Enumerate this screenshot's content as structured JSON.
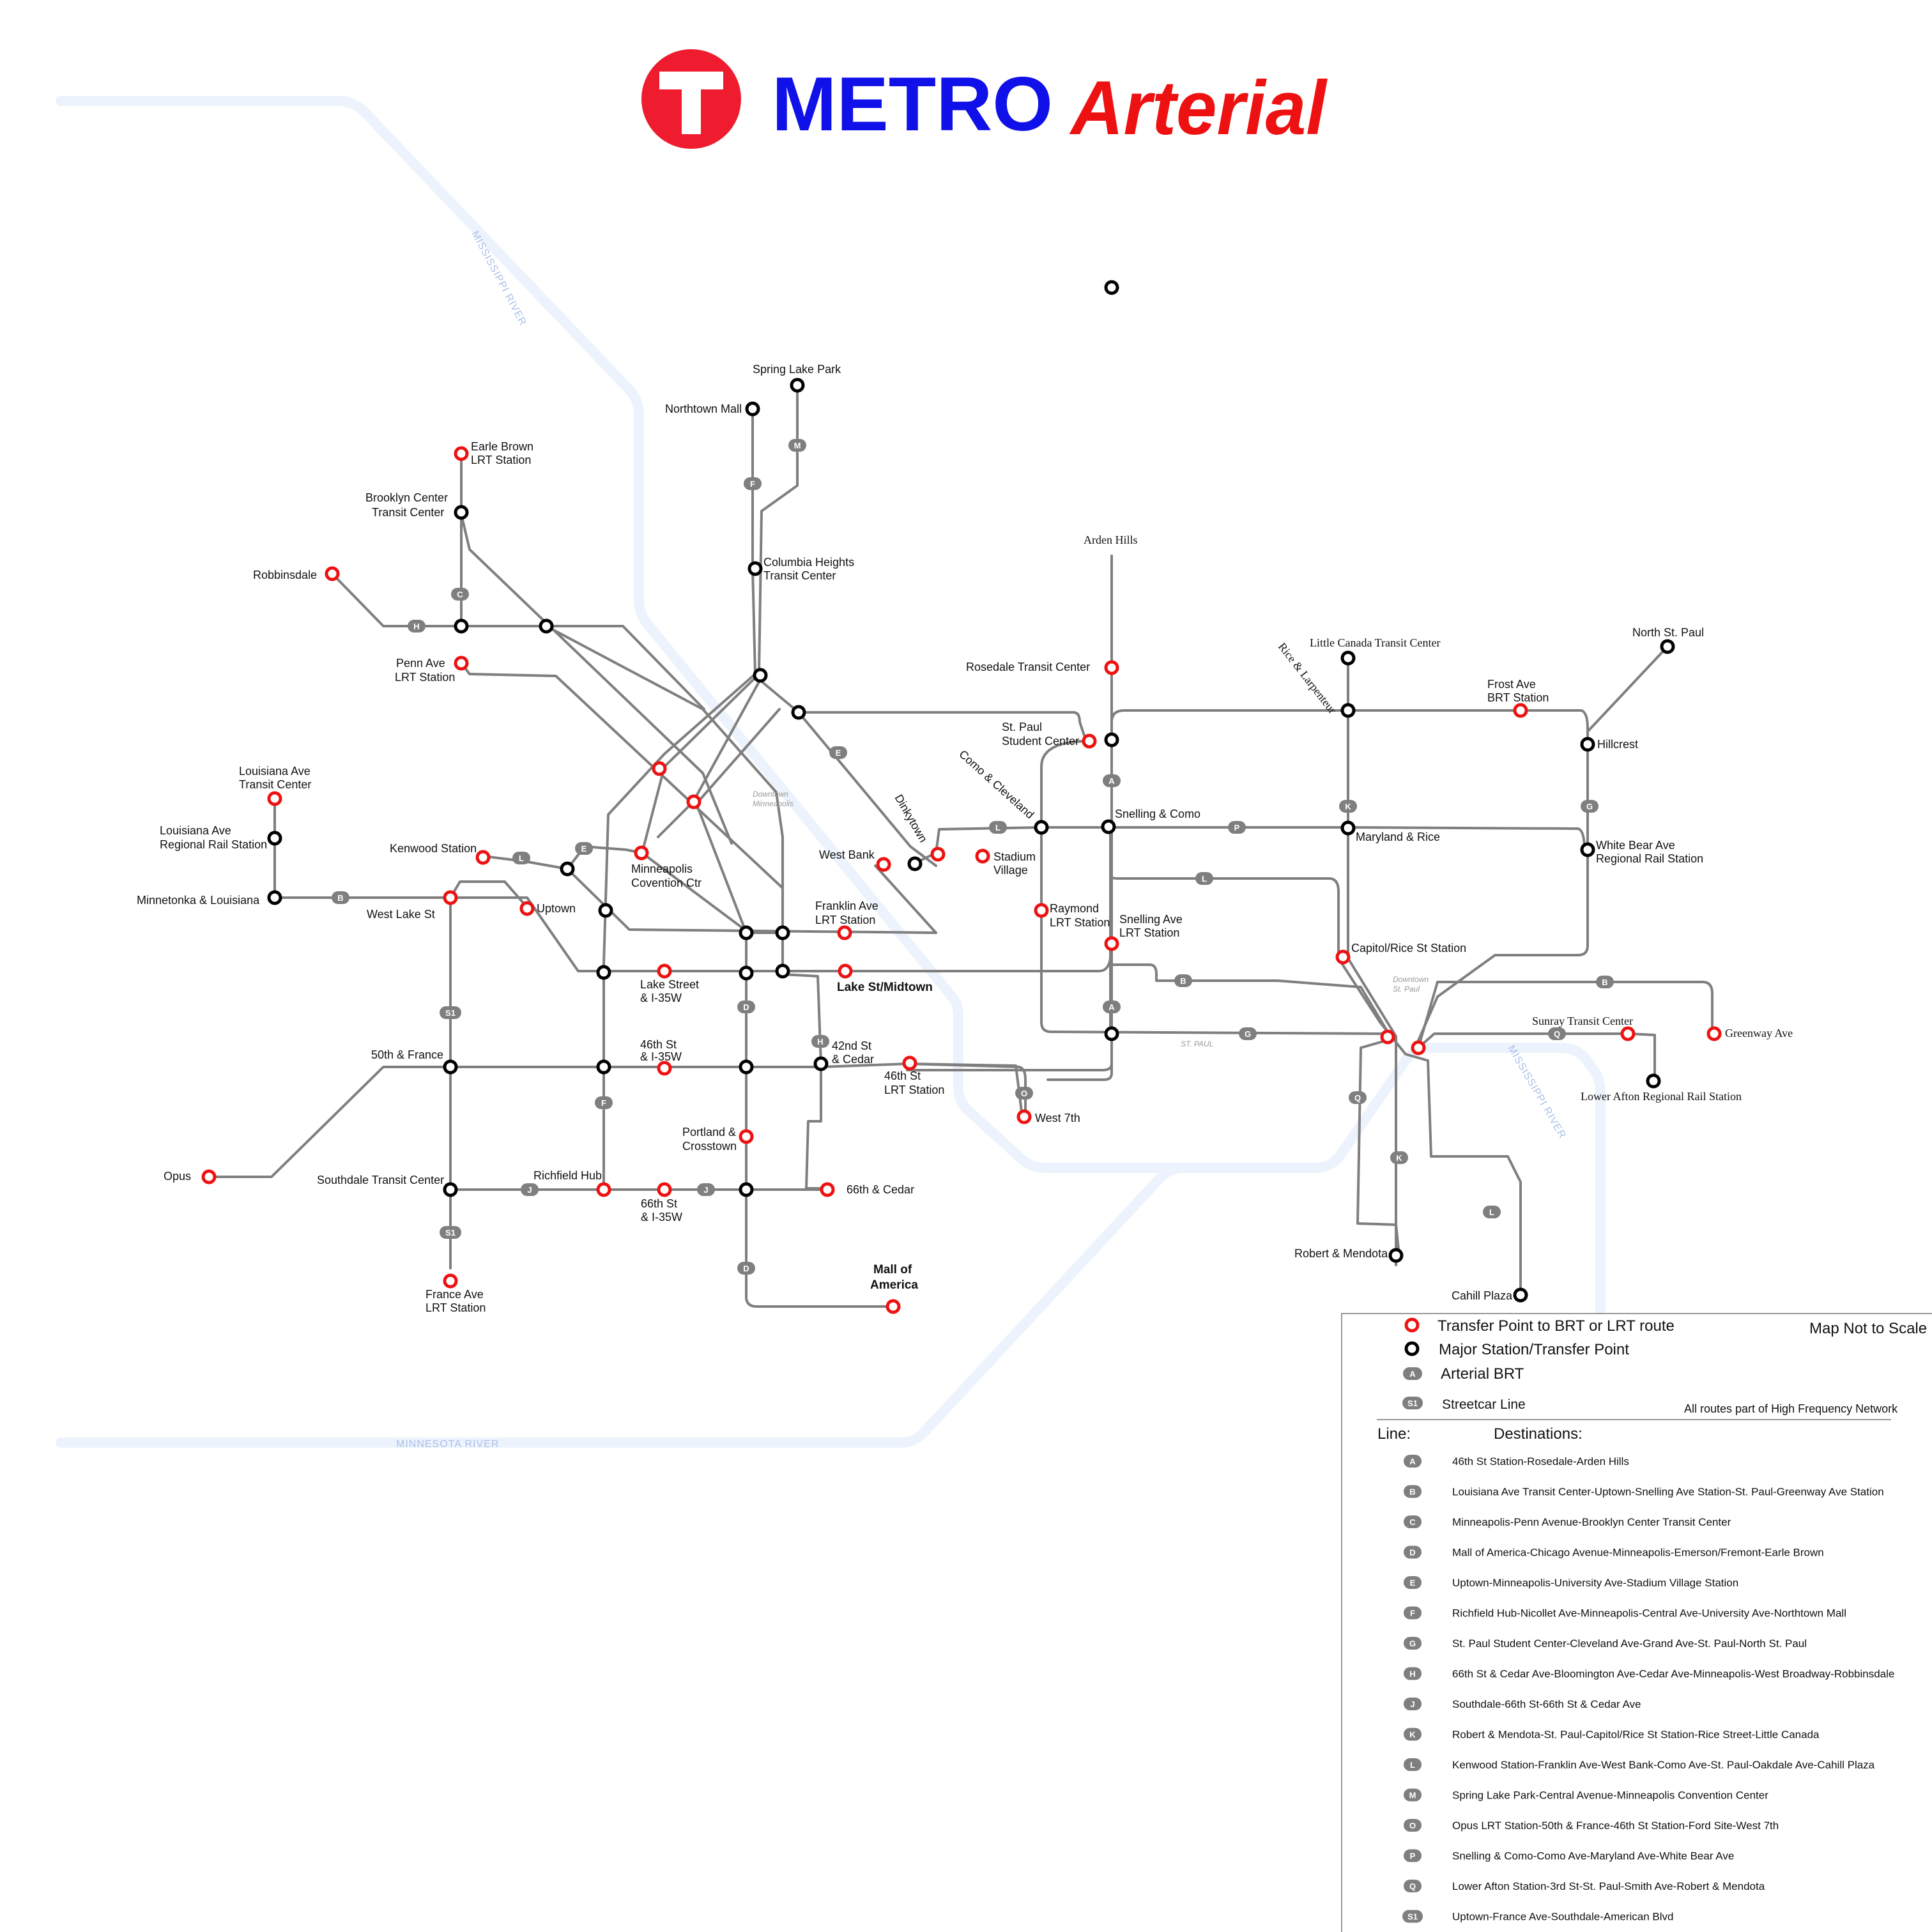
{
  "title": {
    "logo_letter": "T",
    "metro": "METRO",
    "arterial": "Arterial"
  },
  "colors": {
    "brand_red": "#ee1c2e",
    "title_blue": "#1010e8",
    "title_red": "#ee1111",
    "route_gray": "#7f7f7f",
    "river_blue": "#edf3fc",
    "transfer_stop": "#ee1111",
    "major_stop": "#000000"
  },
  "rivers": {
    "mississippi_north": "MISSISSIPPI RIVER",
    "mississippi_south": "MISSISSIPPI RIVER",
    "minnesota": "MINNESOTA RIVER"
  },
  "areas": {
    "downtown_mpls": [
      "Downtown",
      "Minneapolis"
    ],
    "downtown_stpaul": [
      "Downtown",
      "St. Paul"
    ],
    "st_paul": "ST. PAUL"
  },
  "stations": {
    "spring_lake_park": "Spring Lake Park",
    "northtown_mall": "Northtown Mall",
    "earle_brown": [
      "Earle Brown",
      "LRT Station"
    ],
    "brooklyn_center": [
      "Brooklyn Center",
      "Transit Center"
    ],
    "robbinsdale": "Robbinsdale",
    "columbia_heights": [
      "Columbia Heights",
      "Transit Center"
    ],
    "penn_ave": [
      "Penn Ave",
      "LRT Station"
    ],
    "arden_hills": "Arden Hills",
    "rosedale": "Rosedale Transit Center",
    "little_canada": "Little Canada Transit Center",
    "rice_larpenteur": "Rice & Larpenteur",
    "north_st_paul": "North St. Paul",
    "frost_ave": [
      "Frost Ave",
      "BRT Station"
    ],
    "hillcrest": "Hillcrest",
    "st_paul_student": [
      "St. Paul",
      "Student Center"
    ],
    "como_cleveland": "Como & Cleveland",
    "louisiana_tc": [
      "Louisiana Ave",
      "Transit Center"
    ],
    "louisiana_rail": [
      "Louisiana Ave",
      "Regional Rail Station"
    ],
    "minnetonka_louisiana": "Minnetonka & Louisiana",
    "kenwood": "Kenwood Station",
    "west_lake": "West Lake St",
    "uptown": "Uptown",
    "mpls_convention": [
      "Minneapolis",
      "Covention Ctr"
    ],
    "dinkytown": "Dinkytown",
    "west_bank": "West Bank",
    "stadium_village": [
      "Stadium",
      "Village"
    ],
    "snelling_como": "Snelling & Como",
    "maryland_rice": "Maryland & Rice",
    "white_bear": [
      "White Bear Ave",
      "Regional Rail Station"
    ],
    "raymond": [
      "Raymond",
      "LRT Station"
    ],
    "snelling_lrt": [
      "Snelling Ave",
      "LRT Station"
    ],
    "franklin_ave": [
      "Franklin Ave",
      "LRT Station"
    ],
    "capitol_rice": "Capitol/Rice St Station",
    "lake_i35w": [
      "Lake Street",
      "& I-35W"
    ],
    "lake_midtown": "Lake St/Midtown",
    "sunray": "Sunray Transit Center",
    "greenway": "Greenway Ave",
    "lower_afton": "Lower Afton Regional Rail Station",
    "fifty_france": "50th & France",
    "fortysixth_i35w": [
      "46th St",
      "& I-35W"
    ],
    "fortysecond_cedar": [
      "42nd St",
      "& Cedar"
    ],
    "fortysixth_lrt": [
      "46th St",
      "LRT Station"
    ],
    "west_7th": "West 7th",
    "opus": "Opus",
    "portland_crosstown": [
      "Portland &",
      "Crosstown"
    ],
    "richfield_hub": "Richfield Hub",
    "southdale": "Southdale Transit Center",
    "sixtysixth_i35w": [
      "66th St",
      "& I-35W"
    ],
    "sixtysixth_cedar": "66th & Cedar",
    "france_lrt": [
      "France Ave",
      "LRT Station"
    ],
    "mall_of_america": [
      "Mall of",
      "America"
    ],
    "robert_mendota": "Robert & Mendota",
    "cahill": "Cahill Plaza"
  },
  "legend": {
    "transfer": "Transfer Point to BRT or LRT route",
    "major": "Major Station/Transfer Point",
    "brt": "Arterial BRT",
    "brt_badge": "A",
    "streetcar": "Streetcar Line",
    "streetcar_badge": "S1",
    "not_to_scale": "Map Not to Scale",
    "frequency_note": "All routes part of High Frequency Network",
    "line_header": "Line:",
    "dest_header": "Destinations:",
    "lines": [
      {
        "id": "A",
        "dest": "46th St Station-Rosedale-Arden Hills"
      },
      {
        "id": "B",
        "dest": "Louisiana Ave Transit Center-Uptown-Snelling Ave Station-St. Paul-Greenway Ave Station"
      },
      {
        "id": "C",
        "dest": "Minneapolis-Penn Avenue-Brooklyn Center Transit Center"
      },
      {
        "id": "D",
        "dest": "Mall of America-Chicago Avenue-Minneapolis-Emerson/Fremont-Earle Brown"
      },
      {
        "id": "E",
        "dest": "Uptown-Minneapolis-University Ave-Stadium Village Station"
      },
      {
        "id": "F",
        "dest": "Richfield Hub-Nicollet Ave-Minneapolis-Central Ave-University Ave-Northtown Mall"
      },
      {
        "id": "G",
        "dest": "St. Paul Student Center-Cleveland Ave-Grand Ave-St. Paul-North St. Paul"
      },
      {
        "id": "H",
        "dest": "66th St & Cedar Ave-Bloomington Ave-Cedar Ave-Minneapolis-West Broadway-Robbinsdale"
      },
      {
        "id": "J",
        "dest": "Southdale-66th St-66th St & Cedar Ave"
      },
      {
        "id": "K",
        "dest": "Robert & Mendota-St. Paul-Capitol/Rice St Station-Rice Street-Little Canada"
      },
      {
        "id": "L",
        "dest": "Kenwood Station-Franklin Ave-West Bank-Como Ave-St. Paul-Oakdale Ave-Cahill Plaza"
      },
      {
        "id": "M",
        "dest": "Spring Lake Park-Central Avenue-Minneapolis Convention Center"
      },
      {
        "id": "O",
        "dest": "Opus LRT Station-50th & France-46th St Station-Ford Site-West 7th"
      },
      {
        "id": "P",
        "dest": "Snelling & Como-Como Ave-Maryland Ave-White Bear Ave"
      },
      {
        "id": "Q",
        "dest": "Lower Afton Station-3rd St-St. Paul-Smith Ave-Robert & Mendota"
      },
      {
        "id": "S1",
        "dest": "Uptown-France Ave-Southdale-American Blvd"
      }
    ]
  }
}
